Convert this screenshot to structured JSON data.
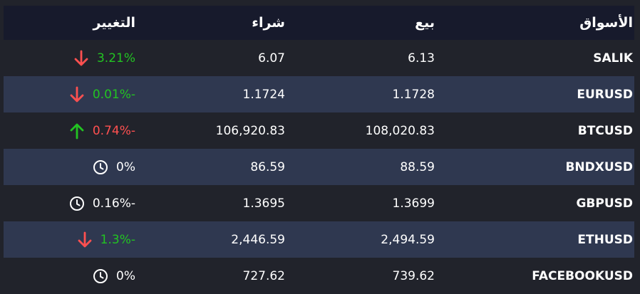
{
  "headers": {
    "change": "التغيير",
    "buy": "شراء",
    "sell": "بيع",
    "market": "الأسواق"
  },
  "colors": {
    "up": "#22c322",
    "down": "#ff5050",
    "neutral": "#ffffff"
  },
  "rows": [
    {
      "market": "SALIK",
      "sell": "6.13",
      "buy": "6.07",
      "change": "3.21%",
      "change_color": "up",
      "icon": "arrow-down-icon"
    },
    {
      "market": "EURUSD",
      "sell": "1.1728",
      "buy": "1.1724",
      "change": "0.01%-",
      "change_color": "up",
      "icon": "arrow-down-icon"
    },
    {
      "market": "BTCUSD",
      "sell": "108,020.83",
      "buy": "106,920.83",
      "change": "0.74%-",
      "change_color": "down",
      "icon": "arrow-up-icon"
    },
    {
      "market": "BNDXUSD",
      "sell": "88.59",
      "buy": "86.59",
      "change": "0%",
      "change_color": "neutral",
      "icon": "clock-icon"
    },
    {
      "market": "GBPUSD",
      "sell": "1.3699",
      "buy": "1.3695",
      "change": "0.16%-",
      "change_color": "neutral",
      "icon": "clock-icon"
    },
    {
      "market": "ETHUSD",
      "sell": "2,494.59",
      "buy": "2,446.59",
      "change": "1.3%-",
      "change_color": "up",
      "icon": "arrow-down-icon"
    },
    {
      "market": "FACEBOOKUSD",
      "sell": "739.62",
      "buy": "727.62",
      "change": "0%",
      "change_color": "neutral",
      "icon": "clock-icon"
    }
  ]
}
